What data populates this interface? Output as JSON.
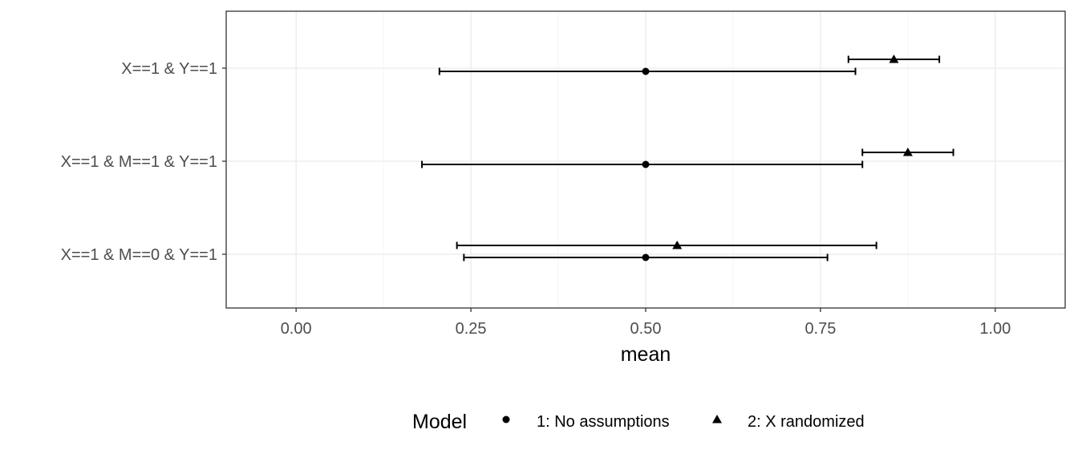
{
  "chart_data": {
    "type": "scatter",
    "title": "",
    "xlabel": "mean",
    "ylabel": "",
    "xlim": [
      -0.1,
      1.1
    ],
    "x_ticks": [
      0,
      0.25,
      0.5,
      0.75,
      1.0
    ],
    "x_tick_labels": [
      "0.00",
      "0.25",
      "0.50",
      "0.75",
      "1.00"
    ],
    "categories": [
      "X==1 & Y==1",
      "X==1 & M==1 & Y==1",
      "X==1 & M==0 & Y==1"
    ],
    "grid": true,
    "legend": {
      "title": "Model",
      "position": "bottom"
    },
    "series": [
      {
        "name": "1: No assumptions",
        "shape": "circle",
        "points": [
          {
            "category": "X==1 & Y==1",
            "mean": 0.5,
            "lower": 0.205,
            "upper": 0.8
          },
          {
            "category": "X==1 & M==1 & Y==1",
            "mean": 0.5,
            "lower": 0.18,
            "upper": 0.81
          },
          {
            "category": "X==1 & M==0 & Y==1",
            "mean": 0.5,
            "lower": 0.24,
            "upper": 0.76
          }
        ]
      },
      {
        "name": "2: X randomized",
        "shape": "triangle",
        "points": [
          {
            "category": "X==1 & Y==1",
            "mean": 0.855,
            "lower": 0.79,
            "upper": 0.92
          },
          {
            "category": "X==1 & M==1 & Y==1",
            "mean": 0.875,
            "lower": 0.81,
            "upper": 0.94
          },
          {
            "category": "X==1 & M==0 & Y==1",
            "mean": 0.545,
            "lower": 0.23,
            "upper": 0.83
          }
        ]
      }
    ],
    "colors": {
      "points": "#000000",
      "grid_major": "#ebebeb",
      "grid_minor": "#f4f4f4",
      "panel_border": "#333333",
      "tick_text": "#4d4d4d"
    }
  }
}
